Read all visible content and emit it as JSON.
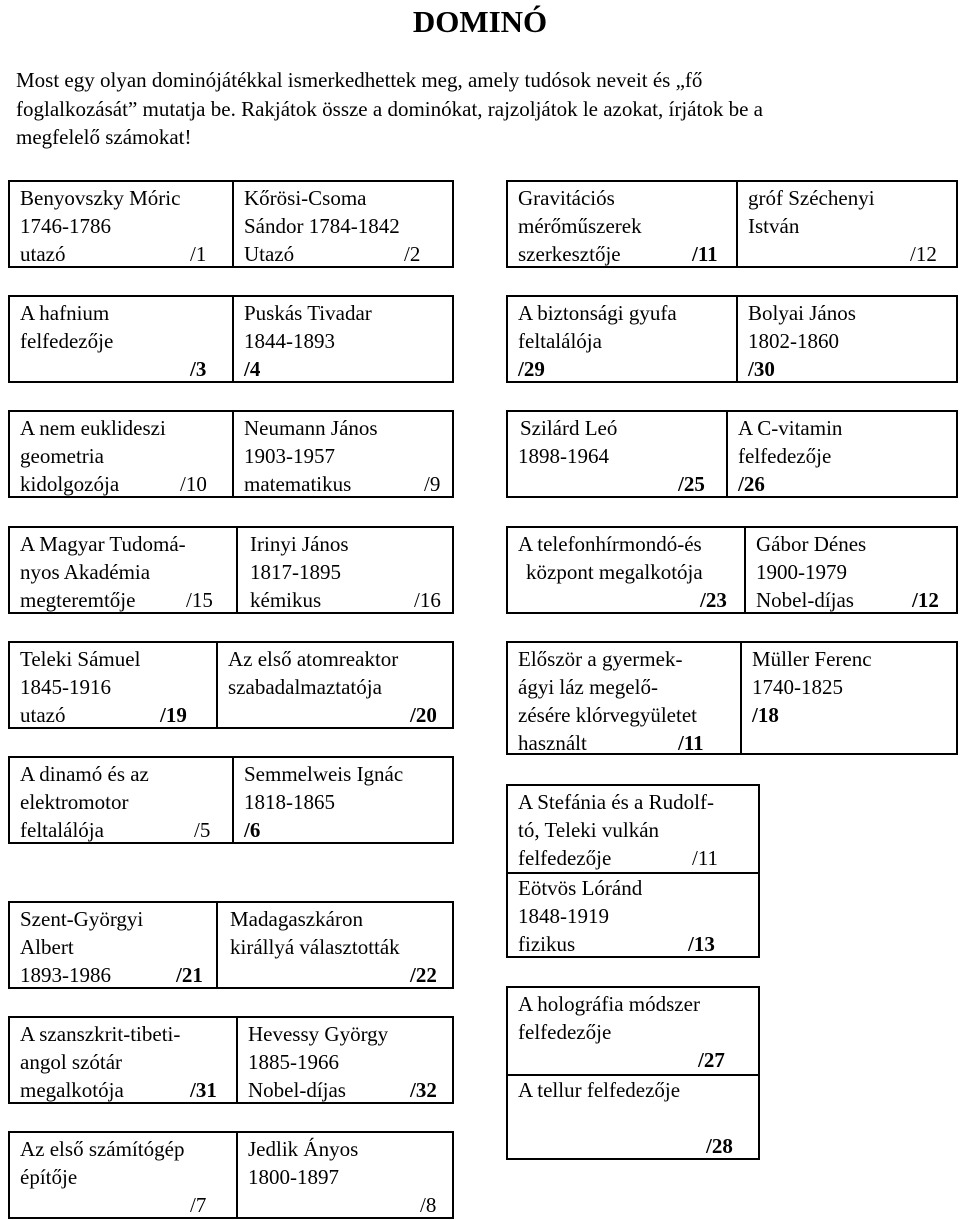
{
  "title": "DOMINÓ",
  "intro": [
    "Most egy olyan dominójátékkal ismerkedhettek meg, amely tudósok neveit és „fő",
    "foglalkozását” mutatja be. Rakjátok össze a dominókat, rajzoljátok le azokat, írjátok be a",
    "megfelelő számokat!"
  ],
  "dominoes": [
    {
      "left": {
        "lines": [
          "Benyovszky Móric",
          "1746-1786",
          "utazó"
        ],
        "num": "/1"
      },
      "right": {
        "lines": [
          "Kőrösi-Csoma",
          "Sándor 1784-1842",
          "Utazó"
        ],
        "num": "/2"
      }
    },
    {
      "left": {
        "lines": [
          "Gravitációs",
          "mérőműszerek",
          "szerkesztője"
        ],
        "num": "/11"
      },
      "right": {
        "lines": [
          "gróf Széchenyi",
          "István"
        ],
        "num": "/12"
      }
    },
    {
      "left": {
        "lines": [
          "A hafnium",
          "felfedezője"
        ],
        "num": "/3"
      },
      "right": {
        "lines": [
          "Puskás Tivadar",
          "1844-1893"
        ],
        "num": "/4"
      }
    },
    {
      "left": {
        "lines": [
          "A biztonsági gyufa",
          "feltalálója"
        ],
        "num": "/29"
      },
      "right": {
        "lines": [
          "Bolyai János",
          "1802-1860"
        ],
        "num": "/30"
      }
    },
    {
      "left": {
        "lines": [
          "A nem euklideszi",
          "geometria",
          "kidolgozója"
        ],
        "num": "/10"
      },
      "right": {
        "lines": [
          "Neumann János",
          "1903-1957",
          "matematikus"
        ],
        "num": "/9"
      }
    },
    {
      "left": {
        "lines": [
          "Szilárd Leó",
          "1898-1964"
        ],
        "num": "/25"
      },
      "right": {
        "lines": [
          "A C-vitamin",
          "felfedezője"
        ],
        "num": "/26"
      }
    },
    {
      "left": {
        "lines": [
          "A Magyar Tudomá-",
          "nyos Akadémia",
          "megteremtője"
        ],
        "num": "/15"
      },
      "right": {
        "lines": [
          "Irinyi János",
          "1817-1895",
          "kémikus"
        ],
        "num": "/16"
      }
    },
    {
      "left": {
        "lines": [
          "A telefonhírmondó-és",
          "központ megalkotója"
        ],
        "num": "/23"
      },
      "right": {
        "lines": [
          "Gábor Dénes",
          "1900-1979",
          "Nobel-díjas"
        ],
        "num": "/12"
      }
    },
    {
      "left": {
        "lines": [
          "Teleki Sámuel",
          "1845-1916",
          "utazó"
        ],
        "num": "/19"
      },
      "right": {
        "lines": [
          "Az első atomreaktor",
          "szabadalmaztatója"
        ],
        "num": "/20"
      }
    },
    {
      "left": {
        "lines": [
          "Először a gyermek-",
          "ágyi láz megelő-",
          "zésére klórvegyületet",
          "használt"
        ],
        "num": "/11"
      },
      "right": {
        "lines": [
          "Müller Ferenc",
          "1740-1825"
        ],
        "num": "/18"
      }
    },
    {
      "left": {
        "lines": [
          "A dinamó és az",
          "elektromotor",
          "feltalálója"
        ],
        "num": "/5"
      },
      "right": {
        "lines": [
          "Semmelweis Ignác",
          "1818-1865"
        ],
        "num": "/6"
      }
    },
    {
      "left": {
        "lines": [
          "A Stefánia és a Rudolf-",
          "tó, Teleki vulkán",
          "felfedezője"
        ],
        "num": "/11"
      },
      "right": {
        "lines": [
          "Eötvös Lóránd",
          "1848-1919",
          "fizikus"
        ],
        "num": "/13"
      }
    },
    {
      "left": {
        "lines": [
          "Szent-Györgyi",
          "Albert",
          "1893-1986"
        ],
        "num": "/21"
      },
      "right": {
        "lines": [
          "Madagaszkáron",
          "királlyá választották"
        ],
        "num": "/22"
      }
    },
    {
      "left": {
        "lines": [
          "A holográfia módszer",
          "felfedezője"
        ],
        "num": "/27"
      },
      "right": {
        "lines": [
          "A tellur felfedezője"
        ],
        "num": "/28"
      }
    },
    {
      "left": {
        "lines": [
          "A szanszkrit-tibeti-",
          "angol szótár",
          "megalkotója"
        ],
        "num": "/31"
      },
      "right": {
        "lines": [
          "Hevessy György",
          "1885-1966",
          "Nobel-díjas"
        ],
        "num": "/32"
      }
    },
    {
      "left": {
        "lines": [
          "Az első számítógép",
          "építője"
        ],
        "num": "/7"
      },
      "right": {
        "lines": [
          "Jedlik Ányos",
          "1800-1897"
        ],
        "num": "/8"
      }
    }
  ]
}
